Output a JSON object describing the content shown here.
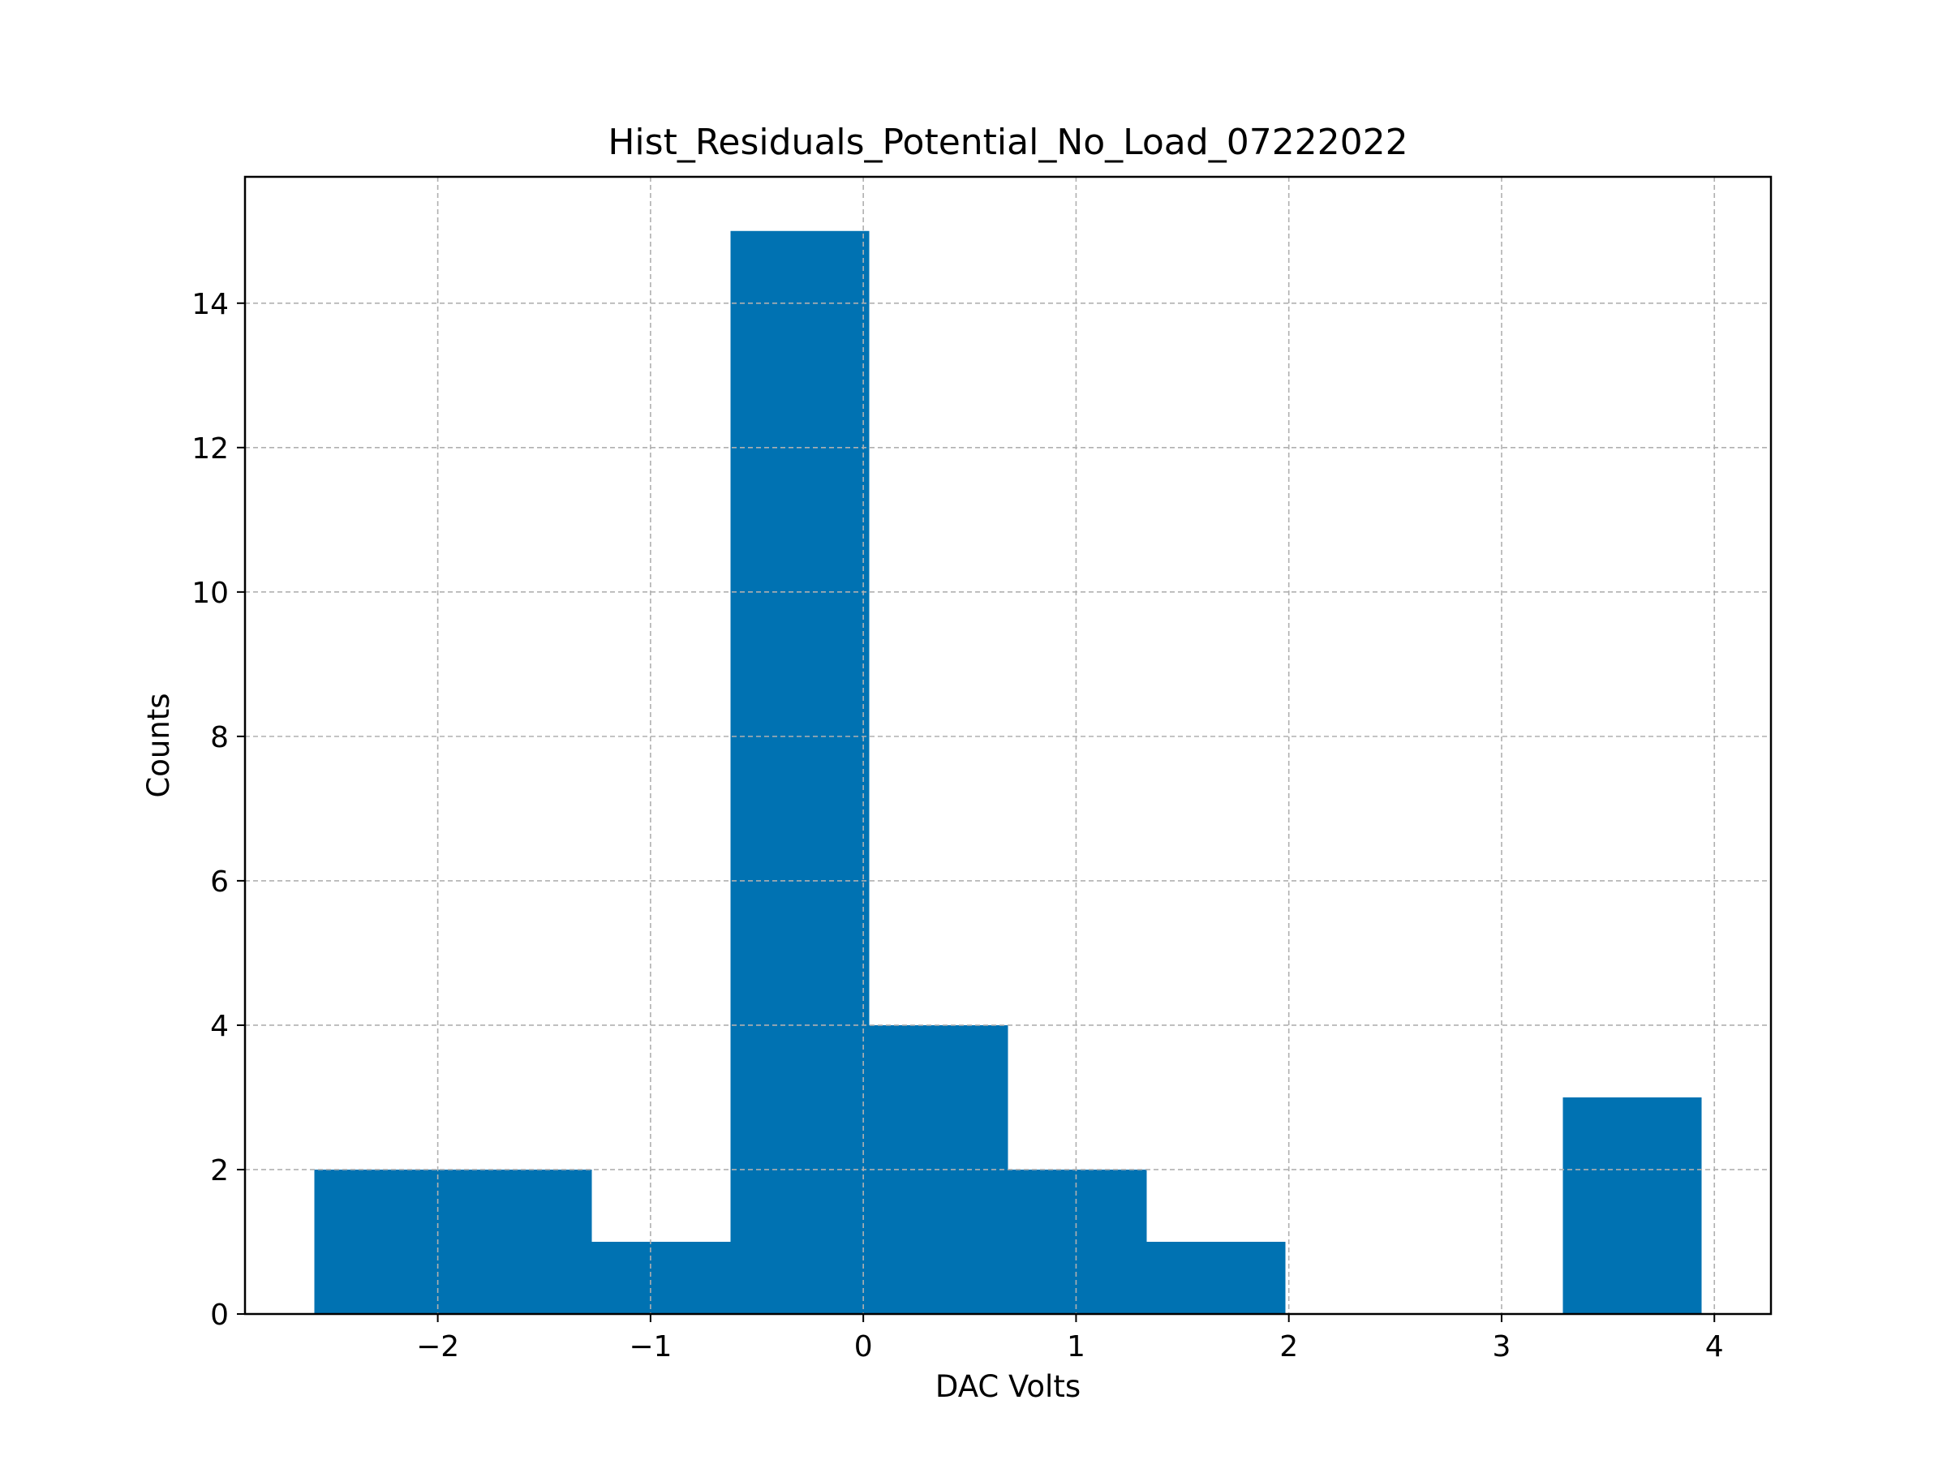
{
  "chart_data": {
    "type": "bar",
    "title": "Hist_Residuals_Potential_No_Load_07222022",
    "xlabel": "DAC Volts",
    "ylabel": "Counts",
    "bin_edges": [
      -2.58,
      -1.928,
      -1.276,
      -0.624,
      0.028,
      0.68,
      1.332,
      1.984,
      2.636,
      3.288,
      3.94
    ],
    "values": [
      2,
      2,
      1,
      15,
      4,
      2,
      1,
      0,
      0,
      3
    ],
    "xlim": [
      -2.906,
      4.266
    ],
    "ylim": [
      0,
      15.75
    ],
    "xticks": [
      -2,
      -1,
      0,
      1,
      2,
      3,
      4
    ],
    "xtick_labels": [
      "−2",
      "−1",
      "0",
      "1",
      "2",
      "3",
      "4"
    ],
    "yticks": [
      0,
      2,
      4,
      6,
      8,
      10,
      12,
      14
    ],
    "ytick_labels": [
      "0",
      "2",
      "4",
      "6",
      "8",
      "10",
      "12",
      "14"
    ],
    "grid": true,
    "legend": "none",
    "bar_color": "#0072b2",
    "grid_color": "#b0b0b0"
  }
}
